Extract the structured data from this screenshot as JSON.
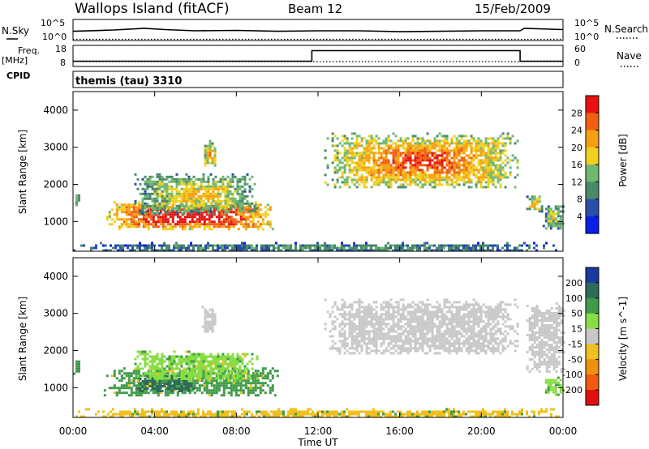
{
  "header": {
    "site": "Wallops Island (fitACF)",
    "beam": "Beam 12",
    "date": "15/Feb/2009"
  },
  "left_labels": {
    "nsky": "N.Sky",
    "freq_top": "Freq.",
    "freq_unit": "[MHz]",
    "cpid": "CPID"
  },
  "right_labels": {
    "nsearch": "N.Search",
    "nave": "Nave"
  },
  "cpid_value": "themis (tau) 3310",
  "colors": {
    "scale_low": "#1f3cff",
    "scale_mid": "#4fa06a",
    "scale_high": "#ff0000",
    "ground_scatter": "#c8c8c8"
  },
  "chart_data": [
    {
      "type": "line",
      "panel": "noise",
      "left_ticks": [
        "10^5",
        "10^0"
      ],
      "right_ticks": [
        "10^5",
        "10^0"
      ],
      "series": [
        {
          "name": "N.Sky",
          "style": "solid",
          "x": [
            0,
            2,
            3.5,
            4.5,
            6,
            8,
            10,
            12,
            14,
            16,
            18,
            20,
            21.9,
            22.1,
            24
          ],
          "y": [
            2.2,
            2.5,
            2.9,
            2.6,
            2.3,
            2.4,
            2.2,
            2.3,
            2.3,
            2.1,
            2.2,
            2.3,
            2.3,
            2.9,
            2.6
          ]
        },
        {
          "name": "N.Search",
          "style": "dotted",
          "x": [
            0,
            24
          ],
          "y": [
            0.3,
            0.3
          ]
        }
      ],
      "xlim": [
        0,
        24
      ]
    },
    {
      "type": "line",
      "panel": "freq-nave",
      "left_ticks": [
        "18",
        "8"
      ],
      "right_ticks": [
        "60",
        "0"
      ],
      "series": [
        {
          "name": "Freq.",
          "style": "solid",
          "x": [
            0,
            11.7,
            11.7,
            21.9,
            21.9,
            24
          ],
          "y": [
            10.5,
            10.5,
            15.5,
            15.5,
            10.5,
            10.5
          ]
        },
        {
          "name": "Nave",
          "style": "dotted",
          "x": [
            0,
            24
          ],
          "y": [
            10.3,
            10.3
          ]
        }
      ],
      "xlim": [
        0,
        24
      ]
    },
    {
      "type": "heatmap",
      "panel": "power",
      "ylabel": "Slant Range [km]",
      "yticks": [
        "4000",
        "3000",
        "2000",
        "1000"
      ],
      "ylim": [
        200,
        4500
      ],
      "xlim": [
        0,
        24
      ],
      "colorbar_label": "Power [dB]",
      "colorbar_ticks": [
        "28",
        "24",
        "20",
        "16",
        "12",
        "8",
        "4"
      ],
      "regions": [
        {
          "t0": 0.0,
          "t1": 0.3,
          "r0": 1400,
          "r1": 1800,
          "level": 0.4
        },
        {
          "t0": 1.5,
          "t1": 10.0,
          "r0": 800,
          "r1": 1550,
          "level": 0.9
        },
        {
          "t0": 3.0,
          "t1": 9.0,
          "r0": 1200,
          "r1": 2300,
          "level": 0.5
        },
        {
          "t0": 6.3,
          "t1": 7.0,
          "r0": 2500,
          "r1": 3200,
          "level": 0.6
        },
        {
          "t0": 12.3,
          "t1": 21.8,
          "r0": 1900,
          "r1": 3400,
          "level": 0.7
        },
        {
          "t0": 22.2,
          "t1": 23.0,
          "r0": 1300,
          "r1": 1700,
          "level": 0.6
        },
        {
          "t0": 23.0,
          "t1": 24.0,
          "r0": 800,
          "r1": 1500,
          "level": 0.45
        },
        {
          "t0": 0.0,
          "t1": 24.0,
          "r0": 200,
          "r1": 450,
          "level": 0.3
        }
      ]
    },
    {
      "type": "heatmap",
      "panel": "velocity",
      "ylabel": "Slant Range [km]",
      "yticks": [
        "4000",
        "3000",
        "2000",
        "1000"
      ],
      "ylim": [
        200,
        4500
      ],
      "xlim": [
        0,
        24
      ],
      "xticks": [
        "00:00",
        "04:00",
        "08:00",
        "12:00",
        "16:00",
        "20:00",
        "00:00"
      ],
      "xlabel": "Time UT",
      "colorbar_label": "Velocity [m s^-1]",
      "colorbar_ticks": [
        "200",
        "100",
        "50",
        "15",
        "-15",
        "-50",
        "-100",
        "-200"
      ],
      "regions": [
        {
          "t0": 0.0,
          "t1": 0.3,
          "r0": 1400,
          "r1": 1800,
          "class": "50"
        },
        {
          "t0": 1.5,
          "t1": 10.0,
          "r0": 800,
          "r1": 1550,
          "class": "50"
        },
        {
          "t0": 3.0,
          "t1": 6.0,
          "r0": 900,
          "r1": 1400,
          "class": "100"
        },
        {
          "t0": 3.0,
          "t1": 9.0,
          "r0": 1200,
          "r1": 2000,
          "class": "15"
        },
        {
          "t0": 6.3,
          "t1": 7.0,
          "r0": 2500,
          "r1": 3200,
          "class": "ground"
        },
        {
          "t0": 12.3,
          "t1": 21.8,
          "r0": 1900,
          "r1": 3400,
          "class": "ground"
        },
        {
          "t0": 22.2,
          "t1": 24.0,
          "r0": 1400,
          "r1": 3300,
          "class": "ground"
        },
        {
          "t0": 23.0,
          "t1": 24.0,
          "r0": 800,
          "r1": 1300,
          "class": "15"
        },
        {
          "t0": 0.0,
          "t1": 24.0,
          "r0": 200,
          "r1": 450,
          "class": "-15"
        }
      ]
    }
  ]
}
